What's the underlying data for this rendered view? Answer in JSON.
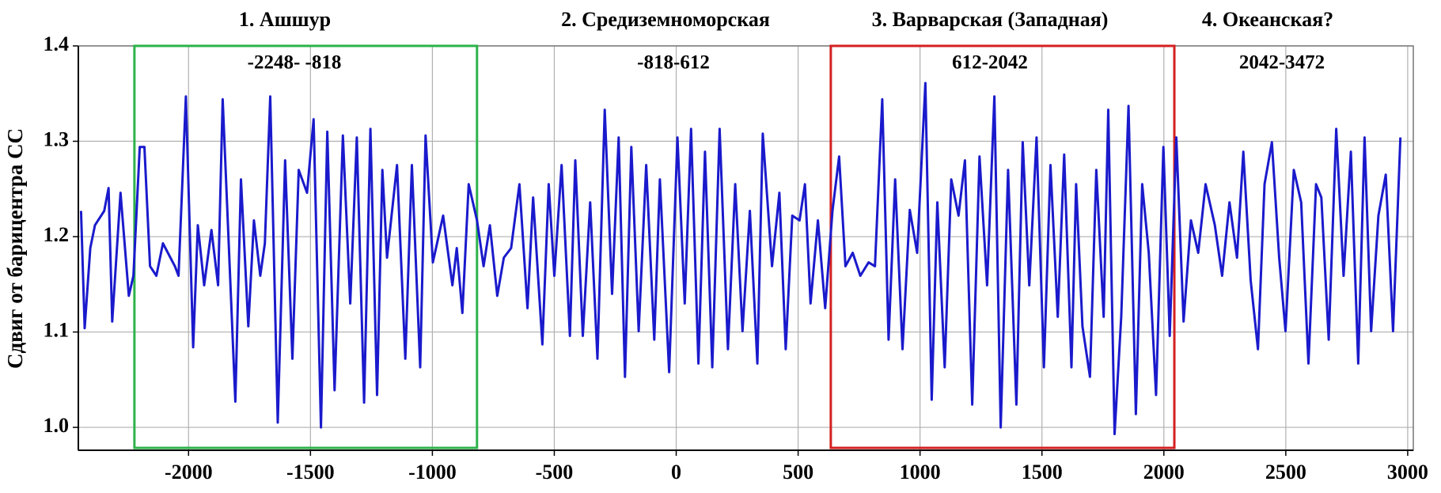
{
  "chart_data": {
    "type": "line",
    "y_label": "Сдвиг от барицентра СС",
    "xlim": [
      -2452,
      3023
    ],
    "ylim": [
      0.976,
      1.4
    ],
    "xticks": [
      -2000,
      -1500,
      -1000,
      -500,
      0,
      500,
      1000,
      1500,
      2000,
      2500,
      3000
    ],
    "yticks": [
      {
        "value": 1,
        "label": "1.0"
      },
      {
        "value": 1.1,
        "label": "1.1"
      },
      {
        "value": 1.2,
        "label": "1.2"
      },
      {
        "value": 1.3,
        "label": "1.3"
      },
      {
        "value": 1.4,
        "label": "1.4"
      }
    ],
    "grid": true,
    "sections": [
      {
        "title": "1. Ашшур",
        "range": "-2248- -818",
        "box_xlim": [
          -2222,
          -817
        ],
        "box_color": "#2db34a"
      },
      {
        "title": "2. Средиземноморская",
        "range": "-818-612"
      },
      {
        "title": "3. Варварская (Западная)",
        "range": "612-2042",
        "box_xlim": [
          634,
          2043
        ],
        "box_color": "#d42020"
      },
      {
        "title": "4. Океанская?",
        "range": "2042-3472"
      }
    ],
    "series": [
      {
        "color": "#1a1acc",
        "x": [
          -2441,
          -2426,
          -2403,
          -2384,
          -2346,
          -2328,
          -2313,
          -2279,
          -2245,
          -2226,
          -2200,
          -2181,
          -2158,
          -2132,
          -2105,
          -2056,
          -2041,
          -2011,
          -1981,
          -1962,
          -1936,
          -1906,
          -1879,
          -1860,
          -1808,
          -1785,
          -1755,
          -1732,
          -1706,
          -1687,
          -1665,
          -1634,
          -1604,
          -1574,
          -1548,
          -1514,
          -1487,
          -1457,
          -1431,
          -1401,
          -1367,
          -1337,
          -1310,
          -1280,
          -1254,
          -1227,
          -1205,
          -1186,
          -1145,
          -1111,
          -1084,
          -1050,
          -1028,
          -998,
          -956,
          -918,
          -900,
          -877,
          -851,
          -817,
          -790,
          -764,
          -734,
          -707,
          -677,
          -643,
          -610,
          -587,
          -549,
          -523,
          -500,
          -470,
          -436,
          -414,
          -383,
          -353,
          -323,
          -293,
          -263,
          -236,
          -210,
          -184,
          -154,
          -123,
          -90,
          -67,
          -29,
          5,
          35,
          61,
          91,
          118,
          148,
          178,
          212,
          242,
          272,
          302,
          333,
          355,
          393,
          423,
          449,
          476,
          506,
          528,
          551,
          581,
          611,
          641,
          668,
          694,
          724,
          755,
          789,
          815,
          845,
          871,
          898,
          928,
          958,
          988,
          1022,
          1048,
          1071,
          1101,
          1128,
          1158,
          1184,
          1214,
          1244,
          1275,
          1305,
          1331,
          1361,
          1395,
          1421,
          1448,
          1478,
          1508,
          1535,
          1565,
          1591,
          1621,
          1640,
          1666,
          1697,
          1723,
          1753,
          1772,
          1798,
          1825,
          1855,
          1885,
          1911,
          1938,
          1968,
          1998,
          2024,
          2051,
          2081,
          2111,
          2141,
          2171,
          2209,
          2239,
          2269,
          2300,
          2326,
          2356,
          2386,
          2413,
          2443,
          2473,
          2499,
          2533,
          2563,
          2593,
          2624,
          2646,
          2676,
          2707,
          2737,
          2767,
          2797,
          2823,
          2850,
          2880,
          2910,
          2940,
          2970
        ],
        "values": [
          1.227,
          1.104,
          1.188,
          1.212,
          1.227,
          1.251,
          1.111,
          1.246,
          1.138,
          1.159,
          1.294,
          1.294,
          1.169,
          1.159,
          1.193,
          1.169,
          1.159,
          1.347,
          1.084,
          1.212,
          1.149,
          1.207,
          1.149,
          1.344,
          1.027,
          1.26,
          1.106,
          1.217,
          1.159,
          1.193,
          1.347,
          1.005,
          1.28,
          1.072,
          1.27,
          1.246,
          1.323,
          1.0,
          1.31,
          1.039,
          1.306,
          1.13,
          1.304,
          1.026,
          1.313,
          1.034,
          1.27,
          1.178,
          1.275,
          1.072,
          1.275,
          1.063,
          1.306,
          1.173,
          1.222,
          1.149,
          1.188,
          1.12,
          1.255,
          1.217,
          1.169,
          1.212,
          1.138,
          1.178,
          1.188,
          1.255,
          1.125,
          1.241,
          1.087,
          1.255,
          1.159,
          1.275,
          1.096,
          1.28,
          1.096,
          1.236,
          1.072,
          1.333,
          1.14,
          1.304,
          1.053,
          1.294,
          1.101,
          1.275,
          1.092,
          1.26,
          1.058,
          1.304,
          1.13,
          1.313,
          1.067,
          1.289,
          1.063,
          1.313,
          1.082,
          1.255,
          1.101,
          1.227,
          1.067,
          1.308,
          1.169,
          1.246,
          1.082,
          1.222,
          1.217,
          1.255,
          1.13,
          1.217,
          1.125,
          1.227,
          1.284,
          1.169,
          1.183,
          1.159,
          1.173,
          1.169,
          1.344,
          1.092,
          1.26,
          1.082,
          1.228,
          1.183,
          1.361,
          1.029,
          1.236,
          1.063,
          1.26,
          1.222,
          1.28,
          1.024,
          1.284,
          1.149,
          1.347,
          1.0,
          1.27,
          1.024,
          1.299,
          1.149,
          1.304,
          1.063,
          1.275,
          1.116,
          1.286,
          1.063,
          1.255,
          1.106,
          1.053,
          1.27,
          1.116,
          1.333,
          0.993,
          1.116,
          1.337,
          1.014,
          1.255,
          1.183,
          1.034,
          1.294,
          1.096,
          1.304,
          1.111,
          1.217,
          1.183,
          1.255,
          1.212,
          1.159,
          1.236,
          1.178,
          1.289,
          1.154,
          1.082,
          1.255,
          1.299,
          1.178,
          1.101,
          1.27,
          1.236,
          1.067,
          1.255,
          1.241,
          1.092,
          1.313,
          1.159,
          1.289,
          1.067,
          1.304,
          1.101,
          1.222,
          1.265,
          1.101,
          1.304
        ]
      }
    ]
  }
}
